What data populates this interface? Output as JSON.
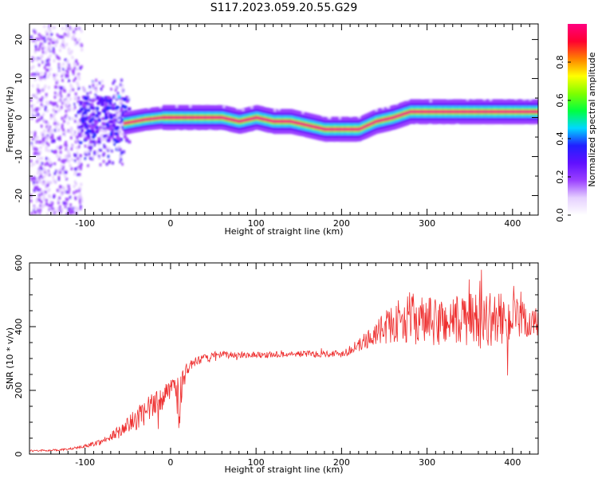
{
  "figure": {
    "title": "S117.2023.059.20.55.G29"
  },
  "chart_data": [
    {
      "type": "heatmap",
      "title": "S117.2023.059.20.55.G29",
      "xlabel": "Height of straight line (km)",
      "ylabel": "Frequency (Hz)",
      "xlim": [
        -165,
        430
      ],
      "ylim": [
        -25,
        24
      ],
      "xticks": [
        -100,
        0,
        100,
        200,
        300,
        400
      ],
      "yticks": [
        -20,
        -10,
        0,
        10,
        20
      ],
      "ridge_frequency": {
        "x": [
          -55,
          -30,
          -10,
          30,
          60,
          80,
          100,
          120,
          140,
          160,
          180,
          200,
          220,
          240,
          260,
          280,
          300,
          350,
          430
        ],
        "y": [
          -1.5,
          -0.5,
          0,
          0,
          0,
          -1,
          0,
          -1,
          -1,
          -2,
          -3,
          -3,
          -3,
          -1,
          0,
          1.5,
          1.5,
          1.5,
          1.5
        ]
      },
      "colorbar": {
        "label": "Normalized spectral amplitude",
        "range": [
          0,
          1
        ],
        "ticks": [
          "0.0",
          "0.2",
          "0.4",
          "0.6",
          "0.8"
        ],
        "colors": [
          "#ffffff",
          "#e5d0ff",
          "#9a40ff",
          "#6010ff",
          "#2020ff",
          "#00d8ff",
          "#00ff40",
          "#80ff00",
          "#ffff00",
          "#ff8000",
          "#ff0030",
          "#ff0080"
        ]
      }
    },
    {
      "type": "line",
      "xlabel": "Height of straight line (km)",
      "ylabel": "SNR (10 * v/v)",
      "xlim": [
        -165,
        430
      ],
      "ylim": [
        0,
        600
      ],
      "xticks": [
        -100,
        0,
        100,
        200,
        300,
        400
      ],
      "yticks": [
        0,
        200,
        400,
        600
      ],
      "series": [
        {
          "color": "#ee3030",
          "x": [
            -165,
            -140,
            -120,
            -100,
            -80,
            -60,
            -40,
            -20,
            0,
            5,
            10,
            15,
            20,
            30,
            50,
            80,
            120,
            160,
            200,
            220,
            240,
            260,
            280,
            300,
            330,
            360,
            390,
            430
          ],
          "y": [
            10,
            12,
            15,
            25,
            40,
            70,
            110,
            150,
            200,
            240,
            150,
            240,
            270,
            290,
            310,
            312,
            312,
            315,
            315,
            340,
            380,
            410,
            430,
            410,
            420,
            420,
            425,
            410
          ],
          "spread": [
            3,
            3,
            3,
            5,
            10,
            20,
            35,
            45,
            30,
            40,
            80,
            30,
            20,
            15,
            12,
            10,
            10,
            10,
            12,
            20,
            40,
            60,
            80,
            80,
            80,
            90,
            80,
            50
          ]
        }
      ]
    }
  ]
}
